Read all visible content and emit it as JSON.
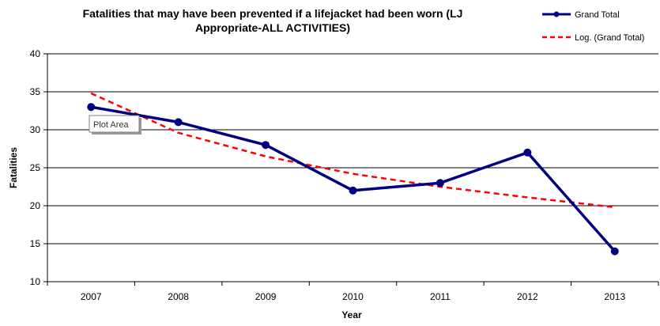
{
  "chart_data": {
    "type": "line",
    "title_line1": "Fatalities that may have been prevented if a lifejacket had been worn (LJ",
    "title_line2": "Appropriate-ALL ACTIVITIES)",
    "xlabel": "Year",
    "ylabel": "Fatalities",
    "categories": [
      "2007",
      "2008",
      "2009",
      "2010",
      "2011",
      "2012",
      "2013"
    ],
    "ylim": [
      10,
      40
    ],
    "yticks": [
      "10",
      "15",
      "20",
      "25",
      "30",
      "35",
      "40"
    ],
    "grid": "horizontal",
    "legend_position": "top-right",
    "series": [
      {
        "name": "Grand Total",
        "values": [
          33,
          31,
          28,
          22,
          23,
          27,
          14
        ],
        "color": "#000080",
        "style": "solid",
        "markers": true
      },
      {
        "name": "Log. (Grand Total)",
        "values": [
          34.8,
          29.6,
          26.5,
          24.2,
          22.5,
          21.1,
          19.8
        ],
        "color": "#ff0000",
        "style": "dashed",
        "markers": false
      }
    ],
    "tooltip": "Plot Area"
  }
}
